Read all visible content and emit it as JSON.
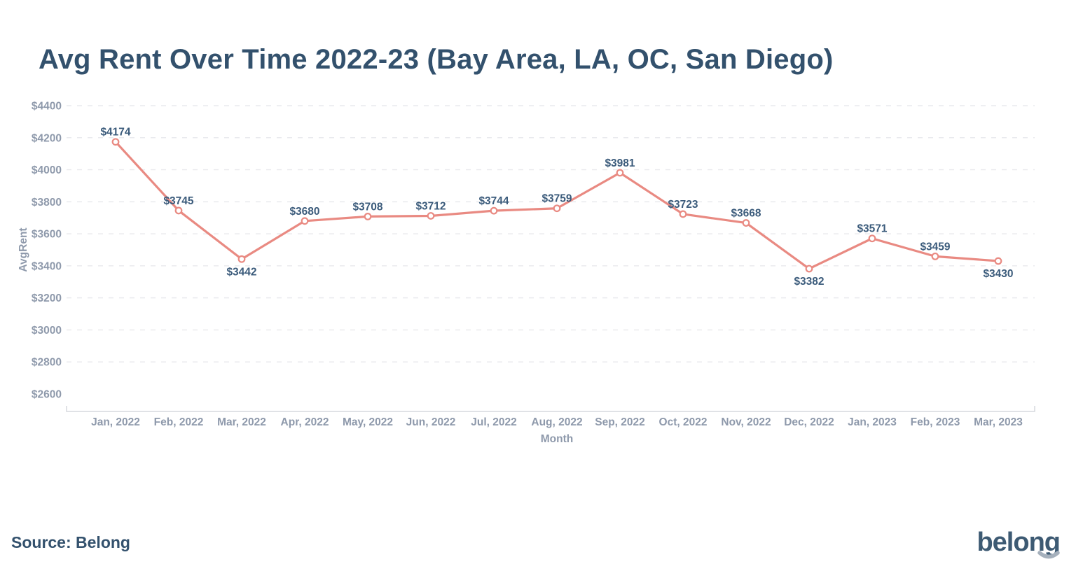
{
  "page": {
    "title": "Avg Rent Over Time 2022-23 (Bay Area, LA, OC, San Diego)",
    "source": "Source: Belong",
    "brand_logo": "belong"
  },
  "chart_data": {
    "type": "line",
    "title": "Avg Rent Over Time 2022-23 (Bay Area, LA, OC, San Diego)",
    "xlabel": "Month",
    "ylabel": "AvgRent",
    "categories": [
      "Jan, 2022",
      "Feb, 2022",
      "Mar, 2022",
      "Apr, 2022",
      "May, 2022",
      "Jun, 2022",
      "Jul, 2022",
      "Aug, 2022",
      "Sep, 2022",
      "Oct, 2022",
      "Nov, 2022",
      "Dec, 2022",
      "Jan, 2023",
      "Feb, 2023",
      "Mar, 2023"
    ],
    "series": [
      {
        "name": "AvgRent",
        "values": [
          4174,
          3745,
          3442,
          3680,
          3708,
          3712,
          3744,
          3759,
          3981,
          3723,
          3668,
          3382,
          3571,
          3459,
          3430
        ]
      }
    ],
    "point_labels": [
      "$4174",
      "$3745",
      "$3442",
      "$3680",
      "$3708",
      "$3712",
      "$3744",
      "$3759",
      "$3981",
      "$3723",
      "$3668",
      "$3382",
      "$3571",
      "$3459",
      "$3430"
    ],
    "ylim": [
      2600,
      4400
    ],
    "ytick_step": 200,
    "ytick_prefix": "$",
    "grid": "horizontal-dashed",
    "legend": "none",
    "colors": {
      "line": "#e98a82",
      "marker_fill": "#ffffff",
      "point_label": "#3b5b7b",
      "axis_text": "#8e99ab",
      "gridline": "#e9eaee",
      "axis_line": "#d5d8de",
      "title": "#33516d",
      "logo": "#3d5a73",
      "logo_smile": "#a5b0bc"
    }
  }
}
